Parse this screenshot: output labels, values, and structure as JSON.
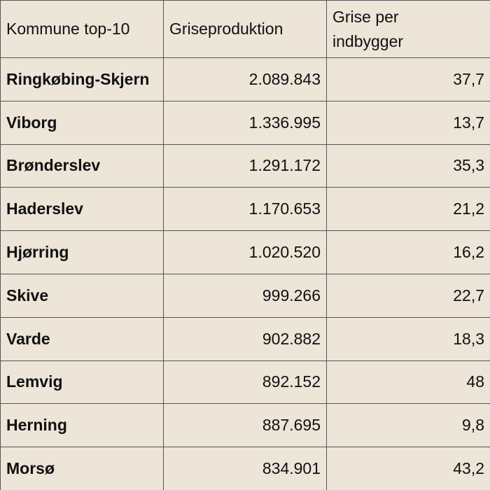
{
  "table": {
    "headers": [
      "Kommune top-10",
      "Griseproduktion",
      "Grise per indbygger"
    ],
    "rows": [
      {
        "kommune": "Ringkøbing-Skjern",
        "produktion": "2.089.843",
        "per_indbygger": "37,7"
      },
      {
        "kommune": "Viborg",
        "produktion": "1.336.995",
        "per_indbygger": "13,7"
      },
      {
        "kommune": "Brønderslev",
        "produktion": "1.291.172",
        "per_indbygger": "35,3"
      },
      {
        "kommune": "Haderslev",
        "produktion": "1.170.653",
        "per_indbygger": "21,2"
      },
      {
        "kommune": "Hjørring",
        "produktion": "1.020.520",
        "per_indbygger": "16,2"
      },
      {
        "kommune": "Skive",
        "produktion": "999.266",
        "per_indbygger": "22,7"
      },
      {
        "kommune": "Varde",
        "produktion": "902.882",
        "per_indbygger": "18,3"
      },
      {
        "kommune": "Lemvig",
        "produktion": "892.152",
        "per_indbygger": "48"
      },
      {
        "kommune": "Herning",
        "produktion": "887.695",
        "per_indbygger": "9,8"
      },
      {
        "kommune": "Morsø",
        "produktion": "834.901",
        "per_indbygger": "43,2"
      }
    ]
  }
}
